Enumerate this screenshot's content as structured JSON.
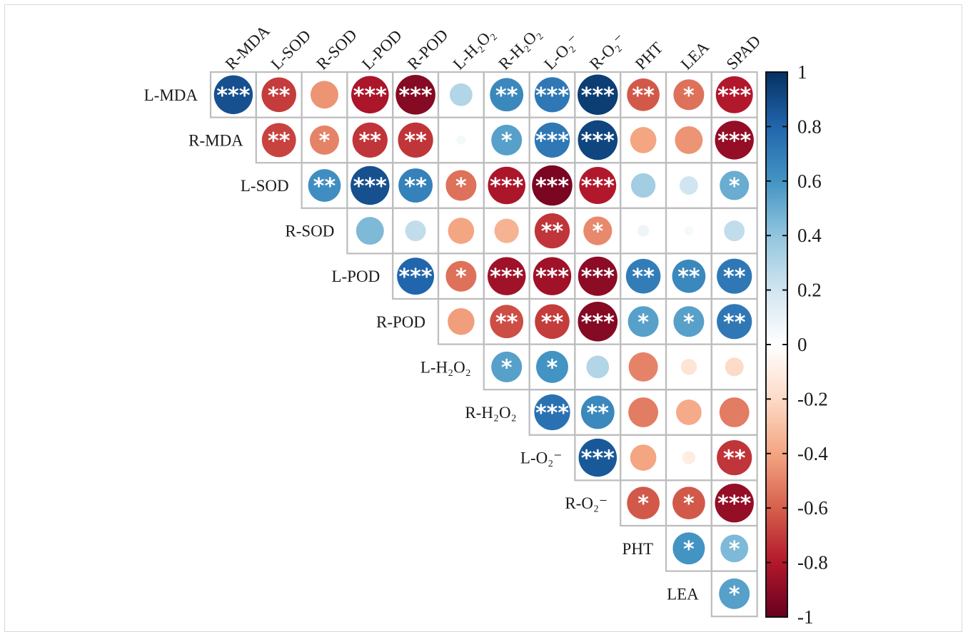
{
  "chart_data": {
    "type": "heatmap",
    "subtype": "correlation-circle-upper-triangle",
    "row_labels": [
      "L-MDA",
      "R-MDA",
      "L-SOD",
      "R-SOD",
      "L-POD",
      "R-POD",
      "L-H₂O₂",
      "R-H₂O₂",
      "L-O₂⁻",
      "R-O₂⁻",
      "PHT",
      "LEA"
    ],
    "column_labels": [
      "R-MDA",
      "L-SOD",
      "R-SOD",
      "L-POD",
      "R-POD",
      "L-H₂O₂",
      "R-H₂O₂",
      "L-O₂⁻",
      "R-O₂⁻",
      "PHT",
      "LEA",
      "SPAD"
    ],
    "correlations": [
      [
        0.88,
        -0.7,
        -0.45,
        -0.82,
        -0.92,
        0.3,
        0.65,
        0.72,
        0.95,
        -0.62,
        -0.55,
        -0.8
      ],
      [
        null,
        -0.68,
        -0.5,
        -0.72,
        -0.72,
        0.05,
        0.55,
        0.72,
        0.92,
        -0.4,
        -0.45,
        -0.88
      ],
      [
        null,
        null,
        0.62,
        0.88,
        0.68,
        -0.55,
        -0.82,
        -0.95,
        -0.8,
        0.35,
        0.2,
        0.5
      ],
      [
        null,
        null,
        null,
        0.45,
        0.25,
        -0.4,
        -0.35,
        -0.72,
        -0.48,
        0.08,
        0.05,
        0.25
      ],
      [
        null,
        null,
        null,
        null,
        0.8,
        -0.55,
        -0.85,
        -0.85,
        -0.9,
        0.7,
        0.65,
        0.72
      ],
      [
        null,
        null,
        null,
        null,
        null,
        -0.42,
        -0.65,
        -0.7,
        -0.92,
        0.55,
        0.55,
        0.72
      ],
      [
        null,
        null,
        null,
        null,
        null,
        null,
        0.55,
        0.6,
        0.3,
        -0.5,
        -0.15,
        -0.2
      ],
      [
        null,
        null,
        null,
        null,
        null,
        null,
        null,
        0.75,
        0.65,
        -0.52,
        -0.38,
        -0.52
      ],
      [
        null,
        null,
        null,
        null,
        null,
        null,
        null,
        null,
        0.85,
        -0.4,
        -0.1,
        -0.72
      ],
      [
        null,
        null,
        null,
        null,
        null,
        null,
        null,
        null,
        null,
        -0.62,
        -0.62,
        -0.88
      ],
      [
        null,
        null,
        null,
        null,
        null,
        null,
        null,
        null,
        null,
        null,
        0.6,
        0.45
      ],
      [
        null,
        null,
        null,
        null,
        null,
        null,
        null,
        null,
        null,
        null,
        null,
        0.55
      ]
    ],
    "significance": [
      [
        "***",
        "**",
        "",
        "***",
        "***",
        "",
        "**",
        "***",
        "***",
        "**",
        "*",
        "***"
      ],
      [
        null,
        "**",
        "*",
        "**",
        "**",
        "",
        "*",
        "***",
        "***",
        "",
        "",
        "***"
      ],
      [
        null,
        null,
        "**",
        "***",
        "**",
        "*",
        "***",
        "***",
        "***",
        "",
        "",
        "*"
      ],
      [
        null,
        null,
        null,
        "",
        "",
        "",
        "",
        "**",
        "*",
        "",
        "",
        ""
      ],
      [
        null,
        null,
        null,
        null,
        "***",
        "*",
        "***",
        "***",
        "***",
        "**",
        "**",
        "**"
      ],
      [
        null,
        null,
        null,
        null,
        null,
        "",
        "**",
        "**",
        "***",
        "*",
        "*",
        "**"
      ],
      [
        null,
        null,
        null,
        null,
        null,
        null,
        "*",
        "*",
        "",
        "",
        "",
        ""
      ],
      [
        null,
        null,
        null,
        null,
        null,
        null,
        null,
        "***",
        "**",
        "",
        "",
        ""
      ],
      [
        null,
        null,
        null,
        null,
        null,
        null,
        null,
        null,
        "***",
        "",
        "",
        "**"
      ],
      [
        null,
        null,
        null,
        null,
        null,
        null,
        null,
        null,
        null,
        "*",
        "*",
        "***"
      ],
      [
        null,
        null,
        null,
        null,
        null,
        null,
        null,
        null,
        null,
        null,
        "*",
        "*"
      ],
      [
        null,
        null,
        null,
        null,
        null,
        null,
        null,
        null,
        null,
        null,
        null,
        "*"
      ]
    ],
    "colorbar": {
      "range": [
        -1,
        1
      ],
      "ticks": [
        "1",
        "0.8",
        "0.6",
        "0.4",
        "0.2",
        "0",
        "-0.2",
        "-0.4",
        "-0.6",
        "-0.8",
        "-1"
      ],
      "colors": [
        "#67001f",
        "#b2182b",
        "#d6604d",
        "#f4a582",
        "#fddbc7",
        "#ffffff",
        "#d1e5f0",
        "#92c5de",
        "#4393c3",
        "#2166ac",
        "#053061"
      ]
    }
  }
}
